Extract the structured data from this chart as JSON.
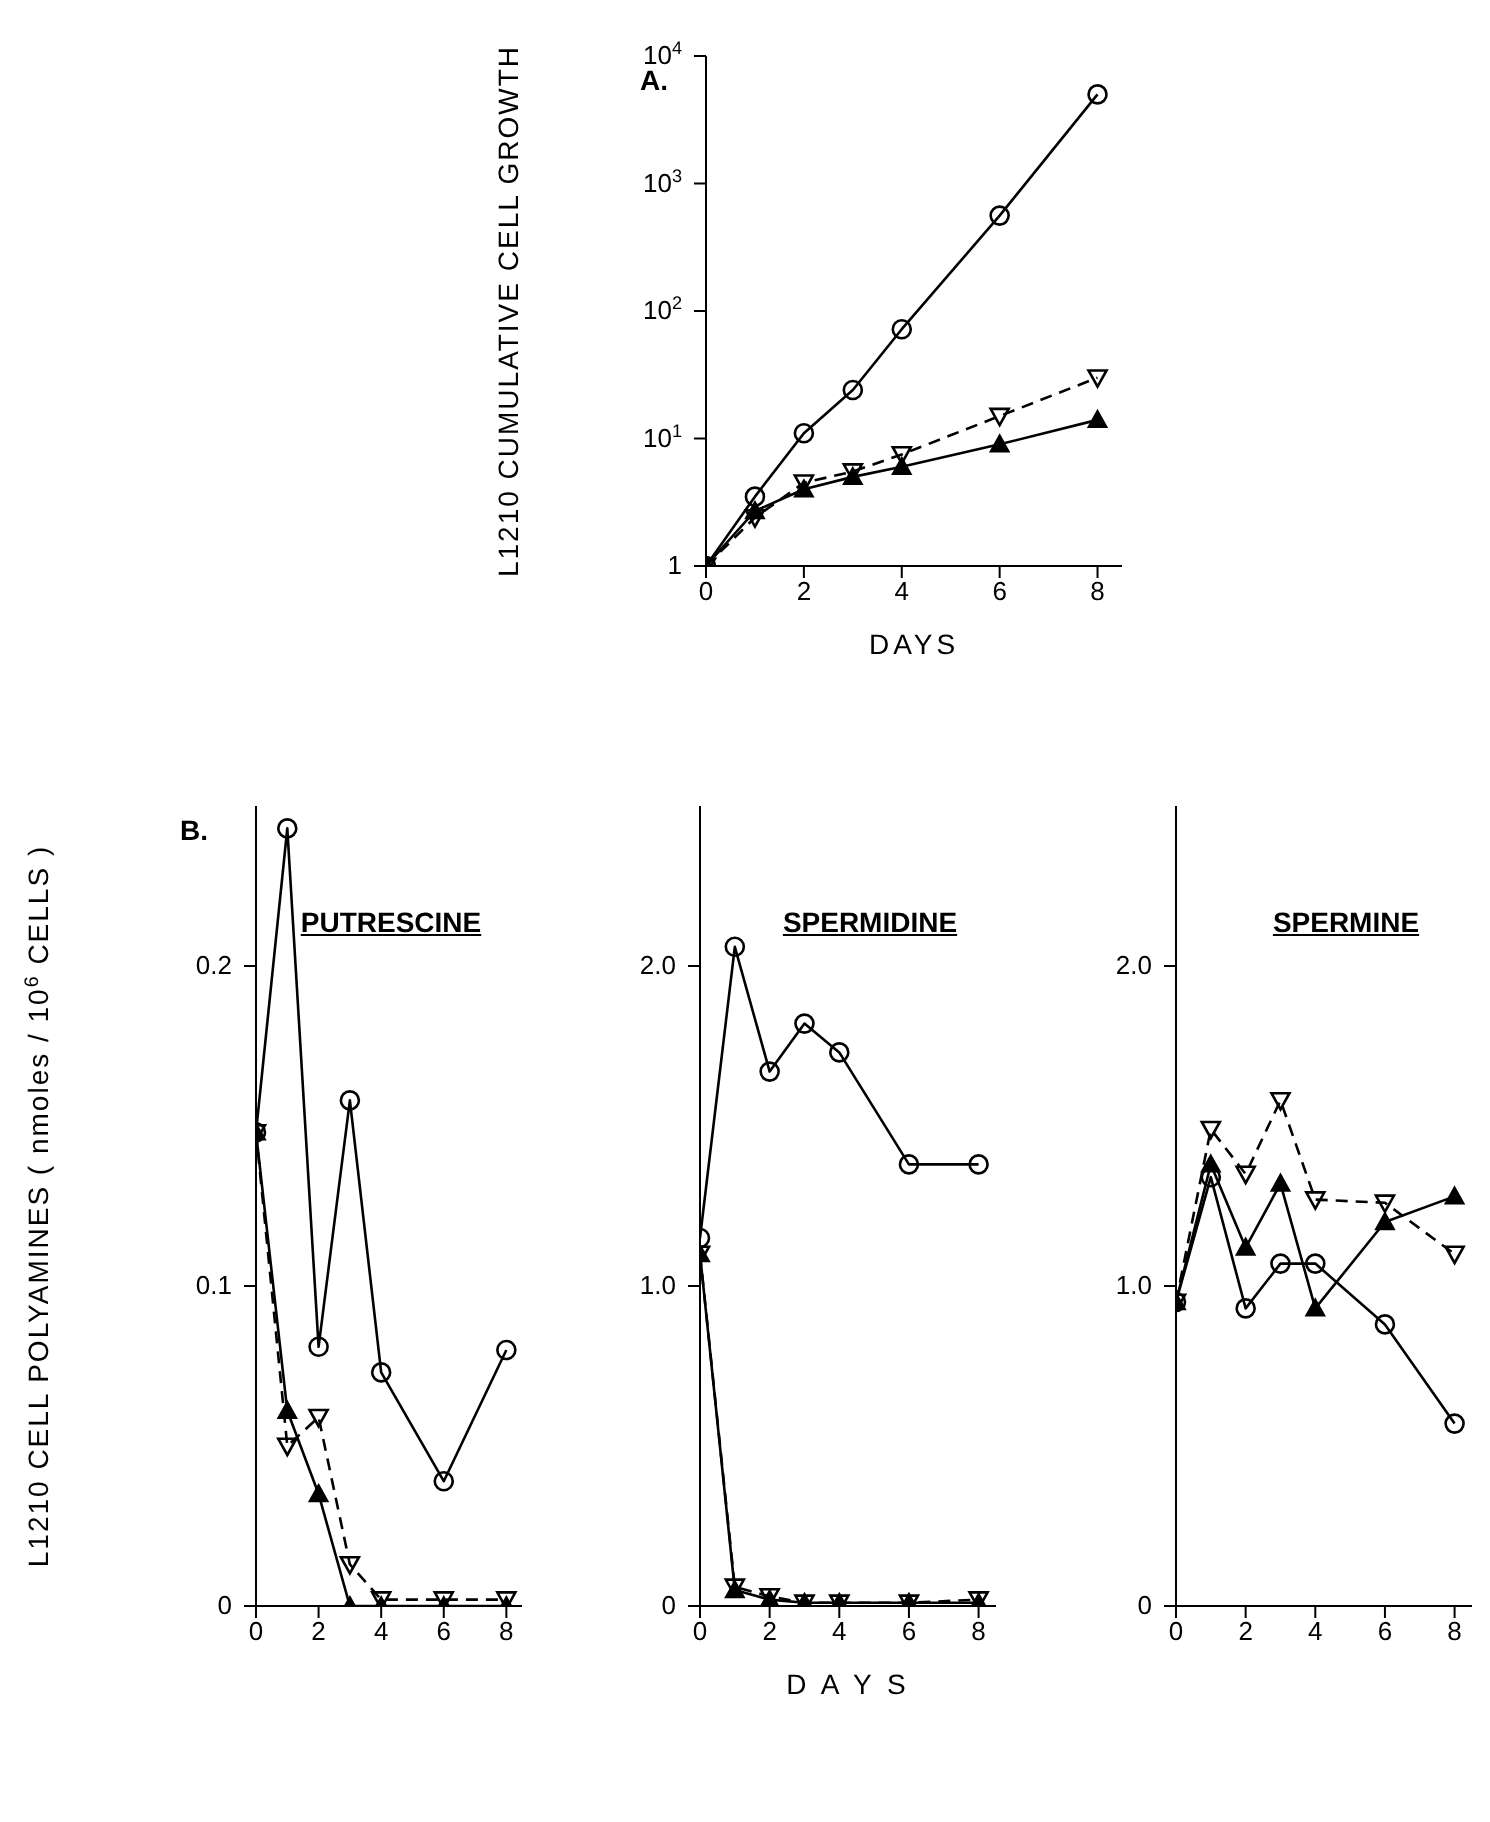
{
  "chart_data": [
    {
      "type": "line",
      "annotations": [
        "A."
      ],
      "xlabel": "DAYS",
      "ylabel": "L1210 CUMULATIVE CELL GROWTH",
      "log": "y",
      "x": [
        0,
        1,
        2,
        3,
        4,
        6,
        8
      ],
      "xlim": [
        0,
        8.5
      ],
      "xticks": [
        0,
        2,
        4,
        6,
        8
      ],
      "ylim": [
        1,
        10000
      ],
      "yticks": [
        1,
        {
          "value": 10,
          "label": "10$^{1}$"
        },
        {
          "value": 100,
          "label": "10$^{2}$"
        },
        {
          "value": 1000,
          "label": "10$^{3}$"
        },
        {
          "value": 10000,
          "label": "10$^{4}$"
        }
      ],
      "grid": false,
      "series": [
        {
          "color": "#000000",
          "marker": "circle",
          "line_style": "solid",
          "values": [
            1,
            3.5,
            11,
            24,
            72,
            560,
            5000
          ]
        },
        {
          "color": "#000000",
          "marker": "triangle-down",
          "line_style": "dashed",
          "values": [
            1,
            2.4,
            4.5,
            5.5,
            7.5,
            15,
            30
          ]
        },
        {
          "color": "#000000",
          "marker": "triangle",
          "line_style": "solid",
          "values": [
            1,
            2.7,
            4,
            5,
            6,
            9,
            14
          ]
        }
      ]
    },
    {
      "type": "line",
      "title": "PUTRESCINE",
      "annotations": [
        "B."
      ],
      "ylabel": "L1210 CELL POLYAMINES   ( nmoles / 10$^{6}$ CELLS )",
      "x": [
        0,
        1,
        2,
        3,
        4,
        6,
        8
      ],
      "xlim": [
        0,
        8.5
      ],
      "xticks": [
        0,
        2,
        4,
        6,
        8
      ],
      "ylim": [
        0,
        0.25
      ],
      "yticks": [
        0,
        0.1,
        0.2
      ],
      "grid": false,
      "series": [
        {
          "color": "#000000",
          "marker": "circle",
          "line_style": "solid",
          "values": [
            0.148,
            0.243,
            0.081,
            0.158,
            0.073,
            0.039,
            0.08
          ]
        },
        {
          "color": "#000000",
          "marker": "triangle-down",
          "line_style": "dashed",
          "values": [
            0.148,
            0.05,
            0.059,
            0.013,
            0.002,
            0.002,
            0.002
          ]
        },
        {
          "color": "#000000",
          "marker": "triangle",
          "line_style": "solid",
          "values": [
            0.148,
            0.061,
            0.035,
            0,
            0,
            0,
            0
          ]
        }
      ]
    },
    {
      "type": "line",
      "title": "SPERMIDINE",
      "xlabel": "D A Y S",
      "x": [
        0,
        1,
        2,
        3,
        4,
        6,
        8
      ],
      "xlim": [
        0,
        8.5
      ],
      "xticks": [
        0,
        2,
        4,
        6,
        8
      ],
      "ylim": [
        0,
        2.5
      ],
      "yticks": [
        0,
        {
          "value": 1,
          "label": "1.0"
        },
        {
          "value": 2,
          "label": "2.0"
        }
      ],
      "grid": false,
      "series": [
        {
          "color": "#000000",
          "marker": "circle",
          "line_style": "solid",
          "values": [
            1.15,
            2.06,
            1.67,
            1.82,
            1.73,
            1.38,
            1.38
          ]
        },
        {
          "color": "#000000",
          "marker": "triangle-down",
          "line_style": "dashed",
          "values": [
            1.1,
            0.06,
            0.03,
            0.01,
            0.01,
            0.01,
            0.02
          ]
        },
        {
          "color": "#000000",
          "marker": "triangle",
          "line_style": "solid",
          "values": [
            1.1,
            0.05,
            0.02,
            0.01,
            0.01,
            0.01,
            0.01
          ]
        }
      ]
    },
    {
      "type": "line",
      "title": "SPERMINE",
      "x": [
        0,
        1,
        2,
        3,
        4,
        6,
        8
      ],
      "xlim": [
        0,
        8.5
      ],
      "xticks": [
        0,
        2,
        4,
        6,
        8
      ],
      "ylim": [
        0,
        2.5
      ],
      "yticks": [
        0,
        {
          "value": 1,
          "label": "1.0"
        },
        {
          "value": 2,
          "label": "2.0"
        }
      ],
      "grid": false,
      "series": [
        {
          "color": "#000000",
          "marker": "circle",
          "line_style": "solid",
          "values": [
            0.95,
            1.34,
            0.93,
            1.07,
            1.07,
            0.88,
            0.57
          ]
        },
        {
          "color": "#000000",
          "marker": "triangle-down",
          "line_style": "dashed",
          "values": [
            0.95,
            1.49,
            1.35,
            1.58,
            1.27,
            1.26,
            1.1
          ]
        },
        {
          "color": "#000000",
          "marker": "triangle",
          "line_style": "solid",
          "values": [
            0.95,
            1.38,
            1.12,
            1.32,
            0.93,
            1.2,
            1.28
          ]
        }
      ]
    }
  ]
}
